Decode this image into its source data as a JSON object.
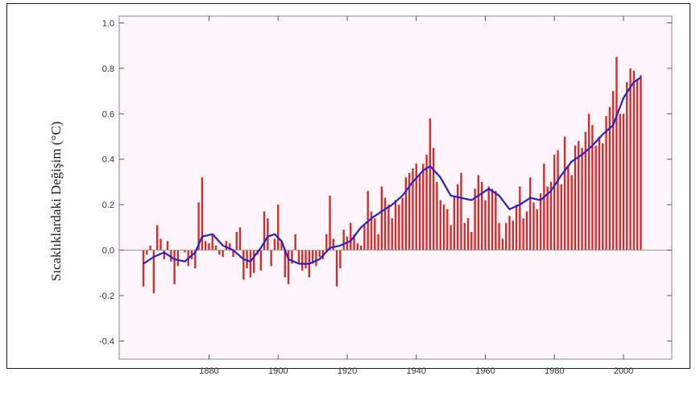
{
  "chart_data": {
    "type": "bar",
    "ylabel": "Sıcaklıklardaki Değişim  (°C)",
    "xlabel": "",
    "title": "",
    "ylim": [
      -0.48,
      1.03
    ],
    "xlim": [
      1854,
      2014
    ],
    "yticks": [
      -0.4,
      -0.2,
      0.0,
      0.2,
      0.4,
      0.6,
      0.8,
      1.0
    ],
    "yticklabels": [
      "-0.4",
      "-0.2",
      "0.0",
      "0.2",
      "0.4",
      "0.6",
      "0.8",
      "1.0"
    ],
    "xticks": [
      1880,
      1900,
      1920,
      1940,
      1960,
      1980,
      2000
    ],
    "xticklabels": [
      "1880",
      "1900",
      "1920",
      "1940",
      "1960",
      "1980",
      "2000"
    ],
    "grid": false,
    "colors": {
      "bars": "#d42a2a",
      "smooth": "#2323c8",
      "plot_bg": "#fff5fa",
      "zero_line": "#999999"
    },
    "series": [
      {
        "type": "bar",
        "x": [
          1861,
          1862,
          1863,
          1864,
          1865,
          1866,
          1867,
          1868,
          1869,
          1870,
          1871,
          1872,
          1873,
          1874,
          1875,
          1876,
          1877,
          1878,
          1879,
          1880,
          1881,
          1882,
          1883,
          1884,
          1885,
          1886,
          1887,
          1888,
          1889,
          1890,
          1891,
          1892,
          1893,
          1894,
          1895,
          1896,
          1897,
          1898,
          1899,
          1900,
          1901,
          1902,
          1903,
          1904,
          1905,
          1906,
          1907,
          1908,
          1909,
          1910,
          1911,
          1912,
          1913,
          1914,
          1915,
          1916,
          1917,
          1918,
          1919,
          1920,
          1921,
          1922,
          1923,
          1924,
          1925,
          1926,
          1927,
          1928,
          1929,
          1930,
          1931,
          1932,
          1933,
          1934,
          1935,
          1936,
          1937,
          1938,
          1939,
          1940,
          1941,
          1942,
          1943,
          1944,
          1945,
          1946,
          1947,
          1948,
          1949,
          1950,
          1951,
          1952,
          1953,
          1954,
          1955,
          1956,
          1957,
          1958,
          1959,
          1960,
          1961,
          1962,
          1963,
          1964,
          1965,
          1966,
          1967,
          1968,
          1969,
          1970,
          1971,
          1972,
          1973,
          1974,
          1975,
          1976,
          1977,
          1978,
          1979,
          1980,
          1981,
          1982,
          1983,
          1984,
          1985,
          1986,
          1987,
          1988,
          1989,
          1990,
          1991,
          1992,
          1993,
          1994,
          1995,
          1996,
          1997,
          1998,
          1999,
          2000,
          2001,
          2002,
          2003,
          2004,
          2005
        ],
        "values": [
          -0.16,
          -0.02,
          0.02,
          -0.19,
          0.11,
          0.05,
          -0.04,
          0.04,
          -0.05,
          -0.15,
          -0.07,
          0.0,
          -0.01,
          -0.07,
          -0.04,
          -0.08,
          0.21,
          0.32,
          0.04,
          0.03,
          0.07,
          0.02,
          -0.02,
          -0.03,
          0.04,
          0.03,
          -0.03,
          0.08,
          0.1,
          -0.13,
          -0.08,
          -0.12,
          -0.1,
          -0.02,
          -0.09,
          0.17,
          0.14,
          -0.07,
          0.05,
          0.2,
          0.04,
          -0.12,
          -0.15,
          -0.06,
          0.07,
          -0.06,
          -0.09,
          -0.08,
          -0.12,
          -0.06,
          -0.07,
          -0.03,
          -0.04,
          0.07,
          0.24,
          0.05,
          -0.16,
          -0.08,
          0.09,
          0.06,
          0.12,
          0.07,
          0.03,
          0.02,
          0.11,
          0.26,
          0.17,
          0.14,
          0.07,
          0.28,
          0.23,
          0.2,
          0.14,
          0.22,
          0.2,
          0.23,
          0.32,
          0.34,
          0.36,
          0.38,
          0.33,
          0.38,
          0.42,
          0.58,
          0.45,
          0.3,
          0.22,
          0.2,
          0.18,
          0.11,
          0.24,
          0.29,
          0.34,
          0.12,
          0.14,
          0.08,
          0.27,
          0.33,
          0.3,
          0.22,
          0.28,
          0.27,
          0.26,
          0.12,
          0.05,
          0.12,
          0.15,
          0.13,
          0.2,
          0.28,
          0.14,
          0.17,
          0.32,
          0.21,
          0.18,
          0.25,
          0.38,
          0.28,
          0.3,
          0.42,
          0.44,
          0.29,
          0.5,
          0.37,
          0.33,
          0.46,
          0.48,
          0.45,
          0.52,
          0.6,
          0.55,
          0.46,
          0.5,
          0.47,
          0.59,
          0.63,
          0.7,
          0.85,
          0.6,
          0.6,
          0.74,
          0.8,
          0.79,
          0.75,
          0.77
        ]
      },
      {
        "type": "line",
        "x": [
          1861,
          1864,
          1867,
          1870,
          1873,
          1876,
          1878,
          1881,
          1884,
          1887,
          1890,
          1892,
          1895,
          1897,
          1899,
          1901,
          1903,
          1906,
          1909,
          1912,
          1915,
          1918,
          1921,
          1924,
          1927,
          1930,
          1933,
          1936,
          1939,
          1942,
          1944,
          1947,
          1950,
          1953,
          1956,
          1959,
          1961,
          1964,
          1967,
          1970,
          1973,
          1976,
          1979,
          1982,
          1985,
          1988,
          1991,
          1994,
          1997,
          2000,
          2003,
          2005
        ],
        "values": [
          -0.06,
          -0.03,
          -0.01,
          -0.04,
          -0.05,
          -0.01,
          0.06,
          0.07,
          0.02,
          0.0,
          -0.04,
          -0.05,
          0.01,
          0.06,
          0.07,
          0.04,
          -0.04,
          -0.06,
          -0.06,
          -0.04,
          0.01,
          0.02,
          0.04,
          0.1,
          0.14,
          0.17,
          0.2,
          0.24,
          0.3,
          0.35,
          0.37,
          0.32,
          0.24,
          0.23,
          0.22,
          0.25,
          0.27,
          0.24,
          0.18,
          0.2,
          0.23,
          0.22,
          0.26,
          0.33,
          0.39,
          0.42,
          0.46,
          0.51,
          0.55,
          0.67,
          0.74,
          0.76
        ]
      }
    ]
  }
}
